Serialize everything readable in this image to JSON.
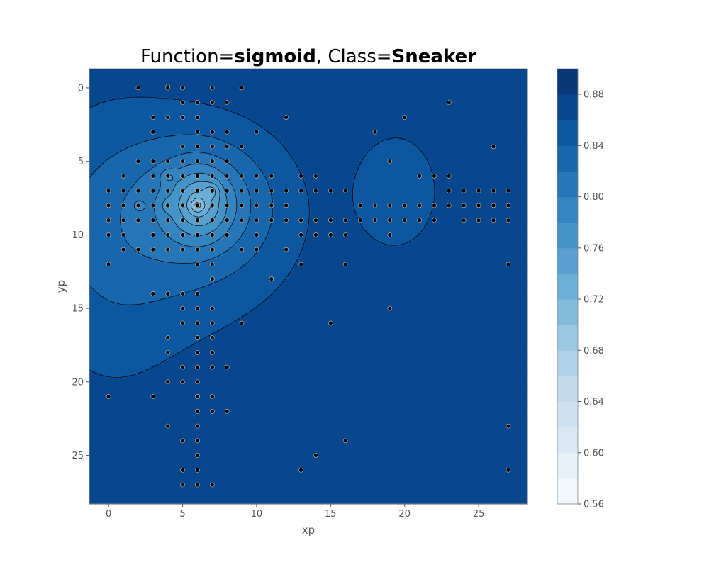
{
  "chart_data": {
    "type": "contour",
    "title_prefix": "Function=",
    "title_function": "sigmoid",
    "title_sep": ", Class=",
    "title_class": "Sneaker",
    "xlabel": "xp",
    "ylabel": "yp",
    "xlim": [
      -1.3,
      28.3
    ],
    "ylim": [
      28.3,
      -1.3
    ],
    "x_ticks": [
      0,
      5,
      10,
      15,
      20,
      25
    ],
    "y_ticks": [
      0,
      5,
      10,
      15,
      20,
      25
    ],
    "colorbar": {
      "min": 0.56,
      "max": 0.9,
      "step": 0.02,
      "ticks": [
        "0.56",
        "0.60",
        "0.64",
        "0.68",
        "0.72",
        "0.76",
        "0.80",
        "0.84",
        "0.88"
      ],
      "palette": "Blues"
    },
    "background_value": 0.875,
    "field_blobs": [
      {
        "x": 6.5,
        "y": 7.8,
        "sx": 3.2,
        "sy": 3.0,
        "a": -0.05
      },
      {
        "x": 6.2,
        "y": 7.8,
        "sx": 1.3,
        "sy": 1.6,
        "a": -0.06
      },
      {
        "x": 6.0,
        "y": 8.0,
        "sx": 0.35,
        "sy": 0.35,
        "a": -0.04
      },
      {
        "x": 4.0,
        "y": 6.0,
        "sx": 0.35,
        "sy": 0.35,
        "a": -0.025
      },
      {
        "x": 7.0,
        "y": 7.0,
        "sx": 0.35,
        "sy": 0.35,
        "a": -0.025
      },
      {
        "x": 2.0,
        "y": 8.0,
        "sx": 0.35,
        "sy": 0.35,
        "a": -0.02
      },
      {
        "x": 4.0,
        "y": 8.0,
        "sx": 0.35,
        "sy": 0.35,
        "a": -0.02
      },
      {
        "x": 3.5,
        "y": 9.5,
        "sx": 6.5,
        "sy": 5.5,
        "a": -0.035
      },
      {
        "x": 0.0,
        "y": 12.0,
        "sx": 3.5,
        "sy": 8.0,
        "a": -0.015
      },
      {
        "x": 19.5,
        "y": 7.0,
        "sx": 2.0,
        "sy": 2.8,
        "a": -0.032
      }
    ],
    "points": [
      [
        2,
        0
      ],
      [
        4,
        -0.1
      ],
      [
        5,
        0
      ],
      [
        7,
        0
      ],
      [
        9,
        0
      ],
      [
        4,
        0
      ],
      [
        5,
        1
      ],
      [
        6,
        1
      ],
      [
        7,
        1
      ],
      [
        8,
        1
      ],
      [
        3,
        2
      ],
      [
        4,
        2
      ],
      [
        5,
        2
      ],
      [
        6,
        2
      ],
      [
        12,
        2
      ],
      [
        20,
        2
      ],
      [
        23,
        1
      ],
      [
        3,
        3
      ],
      [
        6,
        3
      ],
      [
        7,
        3
      ],
      [
        8,
        3
      ],
      [
        10,
        3
      ],
      [
        18,
        3
      ],
      [
        5,
        4
      ],
      [
        6,
        4
      ],
      [
        7,
        4
      ],
      [
        8,
        4
      ],
      [
        9,
        4
      ],
      [
        26,
        4
      ],
      [
        2,
        5
      ],
      [
        3,
        5
      ],
      [
        4,
        5
      ],
      [
        5,
        5
      ],
      [
        6,
        5
      ],
      [
        7,
        5
      ],
      [
        8,
        5
      ],
      [
        19,
        5
      ],
      [
        1,
        6
      ],
      [
        3,
        6
      ],
      [
        4,
        6
      ],
      [
        5,
        6
      ],
      [
        6,
        6
      ],
      [
        7,
        6
      ],
      [
        8,
        6
      ],
      [
        9,
        6
      ],
      [
        10,
        6
      ],
      [
        11,
        6
      ],
      [
        13,
        6
      ],
      [
        14,
        6
      ],
      [
        21,
        6
      ],
      [
        22,
        6
      ],
      [
        23,
        6
      ],
      [
        0,
        7
      ],
      [
        1,
        7
      ],
      [
        2,
        7
      ],
      [
        3,
        7
      ],
      [
        4,
        7
      ],
      [
        5,
        7
      ],
      [
        6,
        7
      ],
      [
        7,
        7
      ],
      [
        8,
        7
      ],
      [
        9,
        7
      ],
      [
        10,
        7
      ],
      [
        11,
        7
      ],
      [
        12,
        7
      ],
      [
        13,
        7
      ],
      [
        14,
        7
      ],
      [
        15,
        7
      ],
      [
        16,
        7
      ],
      [
        23,
        7
      ],
      [
        24,
        7
      ],
      [
        25,
        7
      ],
      [
        26,
        7
      ],
      [
        27,
        7
      ],
      [
        0,
        8
      ],
      [
        1,
        8
      ],
      [
        2,
        8
      ],
      [
        3,
        8
      ],
      [
        4,
        8
      ],
      [
        5,
        8
      ],
      [
        6,
        8
      ],
      [
        7,
        8
      ],
      [
        8,
        8
      ],
      [
        9,
        8
      ],
      [
        10,
        8
      ],
      [
        11,
        8
      ],
      [
        12,
        8
      ],
      [
        17,
        8
      ],
      [
        18,
        8
      ],
      [
        19,
        8
      ],
      [
        20,
        8
      ],
      [
        21,
        8
      ],
      [
        22,
        8
      ],
      [
        23,
        8
      ],
      [
        24,
        8
      ],
      [
        25,
        8
      ],
      [
        26,
        8
      ],
      [
        27,
        8
      ],
      [
        0,
        9
      ],
      [
        1,
        9
      ],
      [
        2,
        9
      ],
      [
        3,
        9
      ],
      [
        4,
        9
      ],
      [
        5,
        9
      ],
      [
        6,
        9
      ],
      [
        7,
        9
      ],
      [
        8,
        9
      ],
      [
        9,
        9
      ],
      [
        10,
        9
      ],
      [
        11,
        9
      ],
      [
        12,
        9
      ],
      [
        13,
        9
      ],
      [
        14,
        9
      ],
      [
        15,
        9
      ],
      [
        16,
        9
      ],
      [
        17,
        9
      ],
      [
        18,
        9
      ],
      [
        19,
        9
      ],
      [
        20,
        9
      ],
      [
        21,
        9
      ],
      [
        22,
        9
      ],
      [
        24,
        9
      ],
      [
        25,
        9
      ],
      [
        26,
        9
      ],
      [
        27,
        9
      ],
      [
        0,
        10
      ],
      [
        1,
        10
      ],
      [
        3,
        10
      ],
      [
        4,
        10
      ],
      [
        5,
        10
      ],
      [
        6,
        10
      ],
      [
        7,
        10
      ],
      [
        8,
        10
      ],
      [
        10,
        10
      ],
      [
        13,
        10
      ],
      [
        14,
        10
      ],
      [
        15,
        10
      ],
      [
        16,
        10
      ],
      [
        19,
        10
      ],
      [
        1,
        11
      ],
      [
        2,
        11
      ],
      [
        3,
        11
      ],
      [
        4,
        11
      ],
      [
        5,
        11
      ],
      [
        6,
        11
      ],
      [
        7,
        11
      ],
      [
        9,
        11
      ],
      [
        10,
        11
      ],
      [
        12,
        11
      ],
      [
        0,
        12
      ],
      [
        6,
        12
      ],
      [
        7,
        12
      ],
      [
        13,
        12
      ],
      [
        16,
        12
      ],
      [
        27,
        12
      ],
      [
        7,
        13
      ],
      [
        11,
        13
      ],
      [
        3,
        14
      ],
      [
        4,
        14
      ],
      [
        5,
        14
      ],
      [
        6,
        14
      ],
      [
        5,
        15
      ],
      [
        6,
        15
      ],
      [
        7,
        15
      ],
      [
        19,
        15
      ],
      [
        5,
        16
      ],
      [
        6,
        16
      ],
      [
        7,
        16
      ],
      [
        9,
        16
      ],
      [
        15,
        16
      ],
      [
        4,
        17
      ],
      [
        6,
        17
      ],
      [
        7,
        17
      ],
      [
        4,
        18
      ],
      [
        6,
        18
      ],
      [
        7,
        18
      ],
      [
        5,
        19
      ],
      [
        6,
        19
      ],
      [
        7,
        19
      ],
      [
        8,
        19
      ],
      [
        4,
        20
      ],
      [
        5,
        20
      ],
      [
        6,
        20
      ],
      [
        0,
        21
      ],
      [
        3,
        21
      ],
      [
        6,
        21
      ],
      [
        7,
        21
      ],
      [
        6,
        22
      ],
      [
        7,
        22
      ],
      [
        8,
        22
      ],
      [
        4,
        23
      ],
      [
        6,
        23
      ],
      [
        27,
        23
      ],
      [
        5,
        24
      ],
      [
        6,
        24
      ],
      [
        16,
        24
      ],
      [
        6,
        25
      ],
      [
        14,
        25
      ],
      [
        5,
        26
      ],
      [
        6,
        26
      ],
      [
        13,
        26
      ],
      [
        27,
        26
      ],
      [
        5,
        27
      ],
      [
        6,
        27
      ],
      [
        7,
        27
      ]
    ]
  }
}
